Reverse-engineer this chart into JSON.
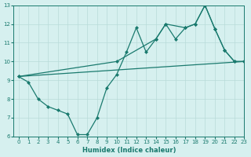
{
  "line1_x": [
    0,
    1,
    2,
    3,
    4,
    5,
    6,
    7,
    8,
    9,
    10,
    11,
    12,
    13,
    14,
    15,
    16,
    17,
    18,
    19,
    20,
    21,
    22,
    23
  ],
  "line1_y": [
    9.2,
    8.9,
    8.0,
    7.6,
    7.4,
    7.2,
    6.1,
    6.1,
    7.0,
    8.6,
    9.3,
    10.5,
    11.8,
    10.5,
    11.2,
    12.0,
    11.2,
    11.8,
    12.0,
    13.0,
    11.75,
    10.6,
    10.0,
    10.0
  ],
  "line2_x": [
    0,
    10,
    14,
    15,
    17,
    18,
    19,
    20,
    21,
    22,
    23
  ],
  "line2_y": [
    9.2,
    10.0,
    11.2,
    12.0,
    11.8,
    12.0,
    13.0,
    11.75,
    10.6,
    10.0,
    10.0
  ],
  "line3_x": [
    0,
    23
  ],
  "line3_y": [
    9.2,
    10.0
  ],
  "color": "#1a7a6e",
  "bg_color": "#d6f0ef",
  "grid_color": "#b8dbd9",
  "xlabel": "Humidex (Indice chaleur)",
  "xlim": [
    -0.5,
    23
  ],
  "ylim": [
    6,
    13
  ],
  "xticks": [
    0,
    1,
    2,
    3,
    4,
    5,
    6,
    7,
    8,
    9,
    10,
    11,
    12,
    13,
    14,
    15,
    16,
    17,
    18,
    19,
    20,
    21,
    22,
    23
  ],
  "yticks": [
    6,
    7,
    8,
    9,
    10,
    11,
    12,
    13
  ]
}
